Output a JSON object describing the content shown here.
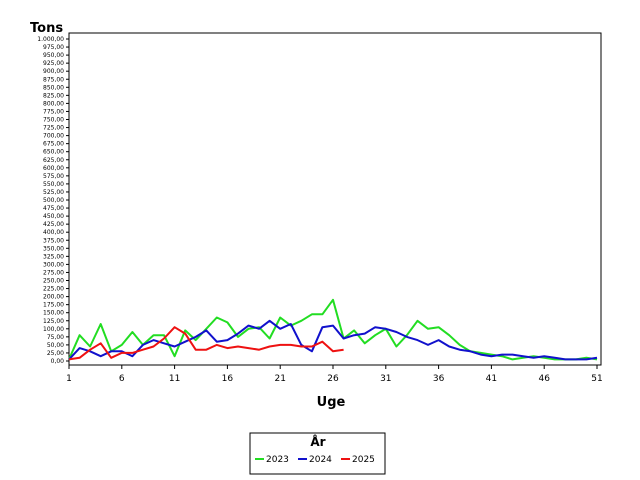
{
  "chart_data": {
    "type": "line",
    "ylabel": "Tons",
    "xlabel": "Uge",
    "legend_title": "År",
    "legend_position": "bottom-center",
    "grid": false,
    "ylim": [
      0,
      1000
    ],
    "xlim": [
      1,
      51
    ],
    "y_ticks": [
      0,
      25,
      50,
      75,
      100,
      125,
      150,
      175,
      200,
      225,
      250,
      275,
      300,
      325,
      350,
      375,
      400,
      425,
      450,
      475,
      500,
      525,
      550,
      575,
      600,
      625,
      650,
      675,
      700,
      725,
      750,
      775,
      800,
      825,
      850,
      875,
      900,
      925,
      950,
      975,
      1000
    ],
    "y_tick_labels": [
      "0,00",
      "25,00",
      "50,00",
      "75,00",
      "100,00",
      "125,00",
      "150,00",
      "175,00",
      "200,00",
      "225,00",
      "250,00",
      "275,00",
      "300,00",
      "325,00",
      "350,00",
      "375,00",
      "400,00",
      "425,00",
      "450,00",
      "475,00",
      "500,00",
      "525,00",
      "550,00",
      "575,00",
      "600,00",
      "625,00",
      "650,00",
      "675,00",
      "700,00",
      "725,00",
      "750,00",
      "775,00",
      "800,00",
      "825,00",
      "850,00",
      "875,00",
      "900,00",
      "925,00",
      "950,00",
      "975,00",
      "1.000,00"
    ],
    "x_ticks": [
      1,
      6,
      11,
      16,
      21,
      26,
      31,
      36,
      41,
      46,
      51
    ],
    "series": [
      {
        "name": "2023",
        "color": "#22dd22",
        "x": [
          1,
          2,
          3,
          4,
          5,
          6,
          7,
          8,
          9,
          10,
          11,
          12,
          13,
          14,
          15,
          16,
          17,
          18,
          19,
          20,
          21,
          22,
          23,
          24,
          25,
          26,
          27,
          28,
          29,
          30,
          31,
          32,
          33,
          34,
          35,
          36,
          37,
          38,
          39,
          40,
          41,
          42,
          43,
          44,
          45,
          46,
          47,
          48,
          49,
          50,
          51
        ],
        "values": [
          5,
          80,
          45,
          115,
          30,
          50,
          90,
          50,
          80,
          80,
          15,
          95,
          65,
          100,
          135,
          120,
          75,
          100,
          105,
          70,
          135,
          110,
          125,
          145,
          145,
          190,
          70,
          95,
          55,
          80,
          100,
          45,
          80,
          125,
          100,
          105,
          80,
          50,
          30,
          25,
          20,
          15,
          5,
          10,
          15,
          10,
          5,
          5,
          5,
          10,
          5
        ]
      },
      {
        "name": "2024",
        "color": "#1111cc",
        "x": [
          1,
          2,
          3,
          4,
          5,
          6,
          7,
          8,
          9,
          10,
          11,
          12,
          13,
          14,
          15,
          16,
          17,
          18,
          19,
          20,
          21,
          22,
          23,
          24,
          25,
          26,
          27,
          28,
          29,
          30,
          31,
          32,
          33,
          34,
          35,
          36,
          37,
          38,
          39,
          40,
          41,
          42,
          43,
          44,
          45,
          46,
          47,
          48,
          49,
          50,
          51
        ],
        "values": [
          5,
          40,
          30,
          15,
          30,
          30,
          15,
          50,
          65,
          55,
          45,
          60,
          75,
          95,
          60,
          65,
          85,
          110,
          100,
          125,
          100,
          115,
          50,
          30,
          105,
          110,
          70,
          80,
          85,
          105,
          100,
          90,
          75,
          65,
          50,
          65,
          45,
          35,
          30,
          20,
          15,
          20,
          20,
          15,
          10,
          15,
          10,
          5,
          5,
          5,
          10
        ]
      },
      {
        "name": "2025",
        "color": "#ee1111",
        "x": [
          1,
          2,
          3,
          4,
          5,
          6,
          7,
          8,
          9,
          10,
          11,
          12,
          13,
          14,
          15,
          16,
          17,
          18,
          19,
          20,
          21,
          22,
          23,
          24,
          25,
          26,
          27
        ],
        "values": [
          5,
          10,
          35,
          55,
          10,
          25,
          25,
          35,
          45,
          70,
          105,
          85,
          35,
          35,
          50,
          40,
          45,
          40,
          35,
          45,
          50,
          50,
          45,
          45,
          60,
          30,
          35
        ]
      }
    ]
  }
}
